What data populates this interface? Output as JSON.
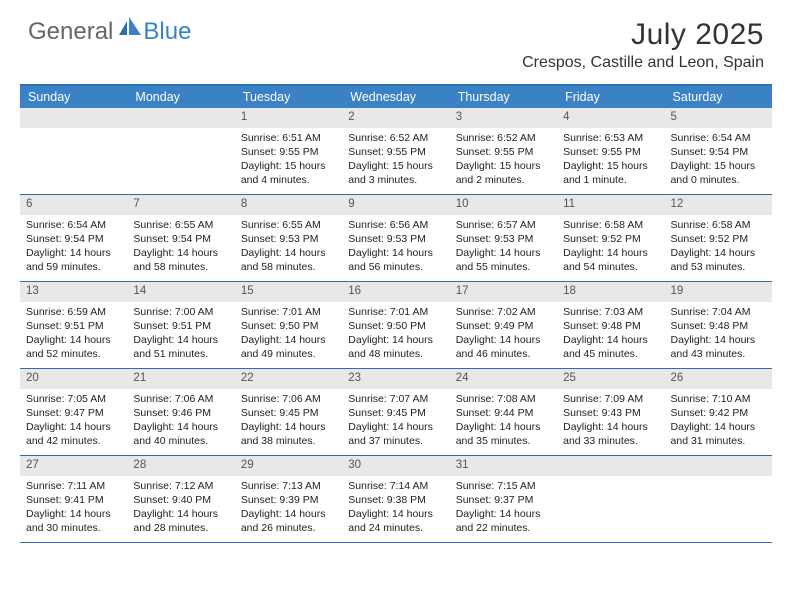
{
  "logo": {
    "general": "General",
    "blue": "Blue"
  },
  "title": "July 2025",
  "location": "Crespos, Castille and Leon, Spain",
  "colors": {
    "header_bg": "#3b82c4",
    "border": "#2a6fb0",
    "daynum_bg": "#e8e8e8",
    "text": "#222222",
    "logo_gray": "#666666",
    "logo_blue": "#3b82c4"
  },
  "weekdays": [
    "Sunday",
    "Monday",
    "Tuesday",
    "Wednesday",
    "Thursday",
    "Friday",
    "Saturday"
  ],
  "weeks": [
    [
      null,
      null,
      {
        "n": "1",
        "sr": "6:51 AM",
        "ss": "9:55 PM",
        "dl": "15 hours and 4 minutes."
      },
      {
        "n": "2",
        "sr": "6:52 AM",
        "ss": "9:55 PM",
        "dl": "15 hours and 3 minutes."
      },
      {
        "n": "3",
        "sr": "6:52 AM",
        "ss": "9:55 PM",
        "dl": "15 hours and 2 minutes."
      },
      {
        "n": "4",
        "sr": "6:53 AM",
        "ss": "9:55 PM",
        "dl": "15 hours and 1 minute."
      },
      {
        "n": "5",
        "sr": "6:54 AM",
        "ss": "9:54 PM",
        "dl": "15 hours and 0 minutes."
      }
    ],
    [
      {
        "n": "6",
        "sr": "6:54 AM",
        "ss": "9:54 PM",
        "dl": "14 hours and 59 minutes."
      },
      {
        "n": "7",
        "sr": "6:55 AM",
        "ss": "9:54 PM",
        "dl": "14 hours and 58 minutes."
      },
      {
        "n": "8",
        "sr": "6:55 AM",
        "ss": "9:53 PM",
        "dl": "14 hours and 58 minutes."
      },
      {
        "n": "9",
        "sr": "6:56 AM",
        "ss": "9:53 PM",
        "dl": "14 hours and 56 minutes."
      },
      {
        "n": "10",
        "sr": "6:57 AM",
        "ss": "9:53 PM",
        "dl": "14 hours and 55 minutes."
      },
      {
        "n": "11",
        "sr": "6:58 AM",
        "ss": "9:52 PM",
        "dl": "14 hours and 54 minutes."
      },
      {
        "n": "12",
        "sr": "6:58 AM",
        "ss": "9:52 PM",
        "dl": "14 hours and 53 minutes."
      }
    ],
    [
      {
        "n": "13",
        "sr": "6:59 AM",
        "ss": "9:51 PM",
        "dl": "14 hours and 52 minutes."
      },
      {
        "n": "14",
        "sr": "7:00 AM",
        "ss": "9:51 PM",
        "dl": "14 hours and 51 minutes."
      },
      {
        "n": "15",
        "sr": "7:01 AM",
        "ss": "9:50 PM",
        "dl": "14 hours and 49 minutes."
      },
      {
        "n": "16",
        "sr": "7:01 AM",
        "ss": "9:50 PM",
        "dl": "14 hours and 48 minutes."
      },
      {
        "n": "17",
        "sr": "7:02 AM",
        "ss": "9:49 PM",
        "dl": "14 hours and 46 minutes."
      },
      {
        "n": "18",
        "sr": "7:03 AM",
        "ss": "9:48 PM",
        "dl": "14 hours and 45 minutes."
      },
      {
        "n": "19",
        "sr": "7:04 AM",
        "ss": "9:48 PM",
        "dl": "14 hours and 43 minutes."
      }
    ],
    [
      {
        "n": "20",
        "sr": "7:05 AM",
        "ss": "9:47 PM",
        "dl": "14 hours and 42 minutes."
      },
      {
        "n": "21",
        "sr": "7:06 AM",
        "ss": "9:46 PM",
        "dl": "14 hours and 40 minutes."
      },
      {
        "n": "22",
        "sr": "7:06 AM",
        "ss": "9:45 PM",
        "dl": "14 hours and 38 minutes."
      },
      {
        "n": "23",
        "sr": "7:07 AM",
        "ss": "9:45 PM",
        "dl": "14 hours and 37 minutes."
      },
      {
        "n": "24",
        "sr": "7:08 AM",
        "ss": "9:44 PM",
        "dl": "14 hours and 35 minutes."
      },
      {
        "n": "25",
        "sr": "7:09 AM",
        "ss": "9:43 PM",
        "dl": "14 hours and 33 minutes."
      },
      {
        "n": "26",
        "sr": "7:10 AM",
        "ss": "9:42 PM",
        "dl": "14 hours and 31 minutes."
      }
    ],
    [
      {
        "n": "27",
        "sr": "7:11 AM",
        "ss": "9:41 PM",
        "dl": "14 hours and 30 minutes."
      },
      {
        "n": "28",
        "sr": "7:12 AM",
        "ss": "9:40 PM",
        "dl": "14 hours and 28 minutes."
      },
      {
        "n": "29",
        "sr": "7:13 AM",
        "ss": "9:39 PM",
        "dl": "14 hours and 26 minutes."
      },
      {
        "n": "30",
        "sr": "7:14 AM",
        "ss": "9:38 PM",
        "dl": "14 hours and 24 minutes."
      },
      {
        "n": "31",
        "sr": "7:15 AM",
        "ss": "9:37 PM",
        "dl": "14 hours and 22 minutes."
      },
      null,
      null
    ]
  ],
  "labels": {
    "sunrise": "Sunrise:",
    "sunset": "Sunset:",
    "daylight": "Daylight:"
  }
}
